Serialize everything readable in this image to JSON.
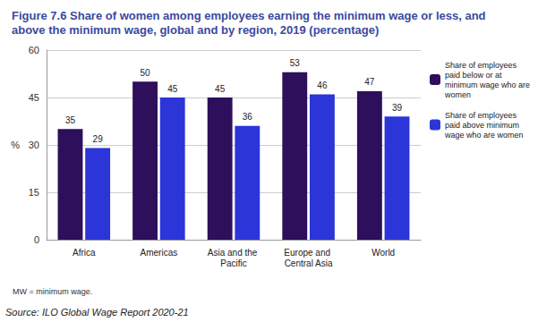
{
  "chart_data": {
    "type": "bar",
    "title": "Figure 7.6 Share of women among employees earning the minimum wage or less, and above the minimum wage, global and by region, 2019 (percentage)",
    "y_label": "%",
    "categories": [
      "Africa",
      "Americas",
      "Asia and the Pacific",
      "Europe and Central Asia",
      "World"
    ],
    "series": [
      {
        "name": "Share of employees paid below or at minimum wage who are women",
        "color": "#2d0f5c",
        "values": [
          35,
          50,
          45,
          53,
          47
        ]
      },
      {
        "name": "Share of employees paid above minimum wage who are women",
        "color": "#2b35d8",
        "values": [
          29,
          45,
          36,
          46,
          39
        ]
      }
    ],
    "ylim": [
      0,
      60
    ],
    "yticks": [
      0,
      15,
      30,
      45,
      60
    ],
    "grid": true,
    "legend": "right",
    "data_labels": true,
    "annotations": [
      "MW = minimum wage.",
      "Source: ILO Global Wage Report 2020-21"
    ]
  }
}
